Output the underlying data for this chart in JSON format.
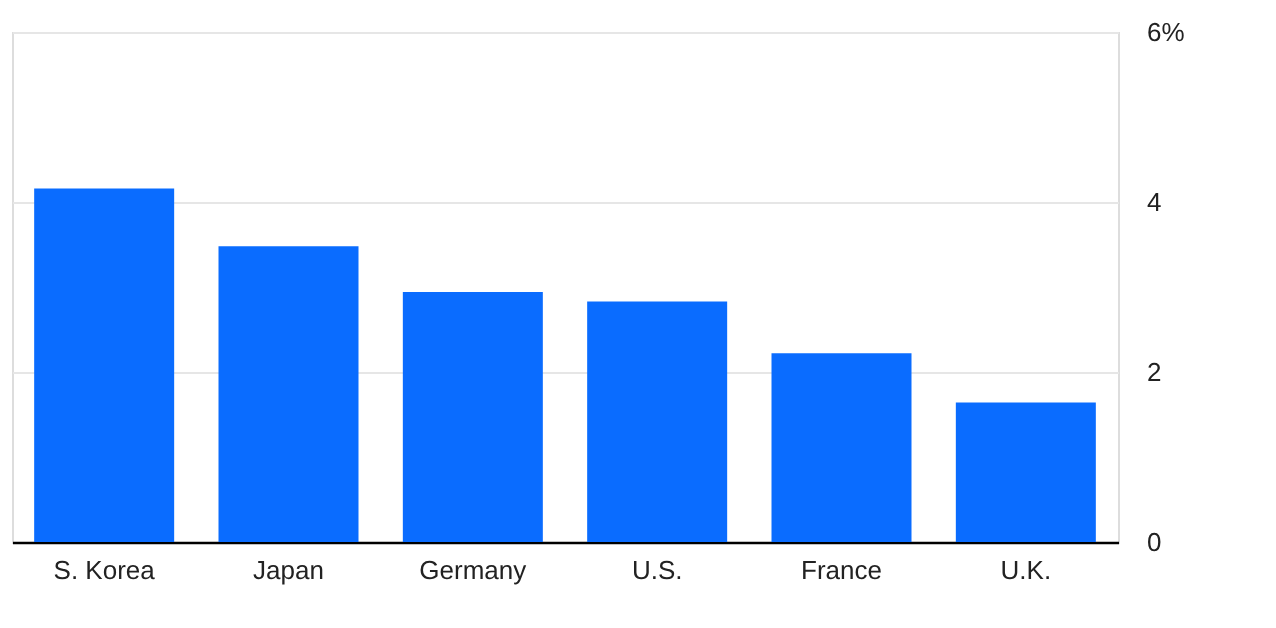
{
  "chart_data": {
    "type": "bar",
    "categories": [
      "S. Korea",
      "Japan",
      "Germany",
      "U.S.",
      "France",
      "U.K."
    ],
    "values": [
      4.16,
      3.48,
      2.94,
      2.83,
      2.22,
      1.64
    ],
    "color": "#0a6cff",
    "ylim": [
      0,
      6
    ],
    "yticks": [
      0,
      2,
      4,
      {
        "value": 6,
        "label": "6%"
      }
    ],
    "grid": "y"
  }
}
